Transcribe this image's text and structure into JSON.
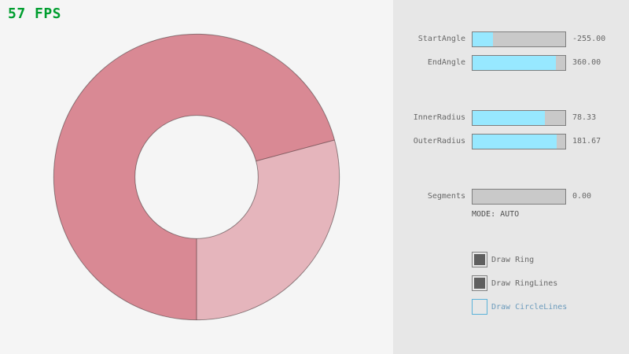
{
  "fps_label": "57 FPS",
  "ring": {
    "start_angle": "-255.00",
    "end_angle": "360.00",
    "inner_radius": "78.33",
    "outer_radius": "181.67",
    "segments": "0.00",
    "mode": "AUTO"
  },
  "panel": {
    "sliders": [
      {
        "label": "StartAngle",
        "value": "-255.00",
        "fraction": 0.2167
      },
      {
        "label": "EndAngle",
        "value": "360.00",
        "fraction": 0.9
      },
      {
        "label": "InnerRadius",
        "value": "78.33",
        "fraction": 0.7833
      },
      {
        "label": "OuterRadius",
        "value": "181.67",
        "fraction": 0.9083
      },
      {
        "label": "Segments",
        "value": "0.00",
        "fraction": 0.0
      }
    ],
    "mode_text": "MODE: AUTO",
    "checkboxes": [
      {
        "label": "Draw Ring",
        "checked": true,
        "focused": false
      },
      {
        "label": "Draw RingLines",
        "checked": true,
        "focused": false
      },
      {
        "label": "Draw CircleLines",
        "checked": false,
        "focused": true
      }
    ]
  },
  "colors": {
    "background": "#f5f5f5",
    "panel_background": "#e7e7e7",
    "fps_green": "#009e2f",
    "label_text": "#686868",
    "mode_text": "#505050",
    "slider_border": "#7e7e7e",
    "slider_track": "#c9c9c9",
    "slider_fill": "#97e8ff",
    "checkbox_border": "#838383",
    "check_fill": "#5f5f5f",
    "focus_border": "#5bb2d9",
    "focus_text": "#6c9bbc",
    "ring_overlap": "#d98994",
    "ring_single": "#e5b5bc",
    "ring_line": "rgba(0,0,0,0.4)",
    "inner_hole": "#f5f5f5"
  }
}
